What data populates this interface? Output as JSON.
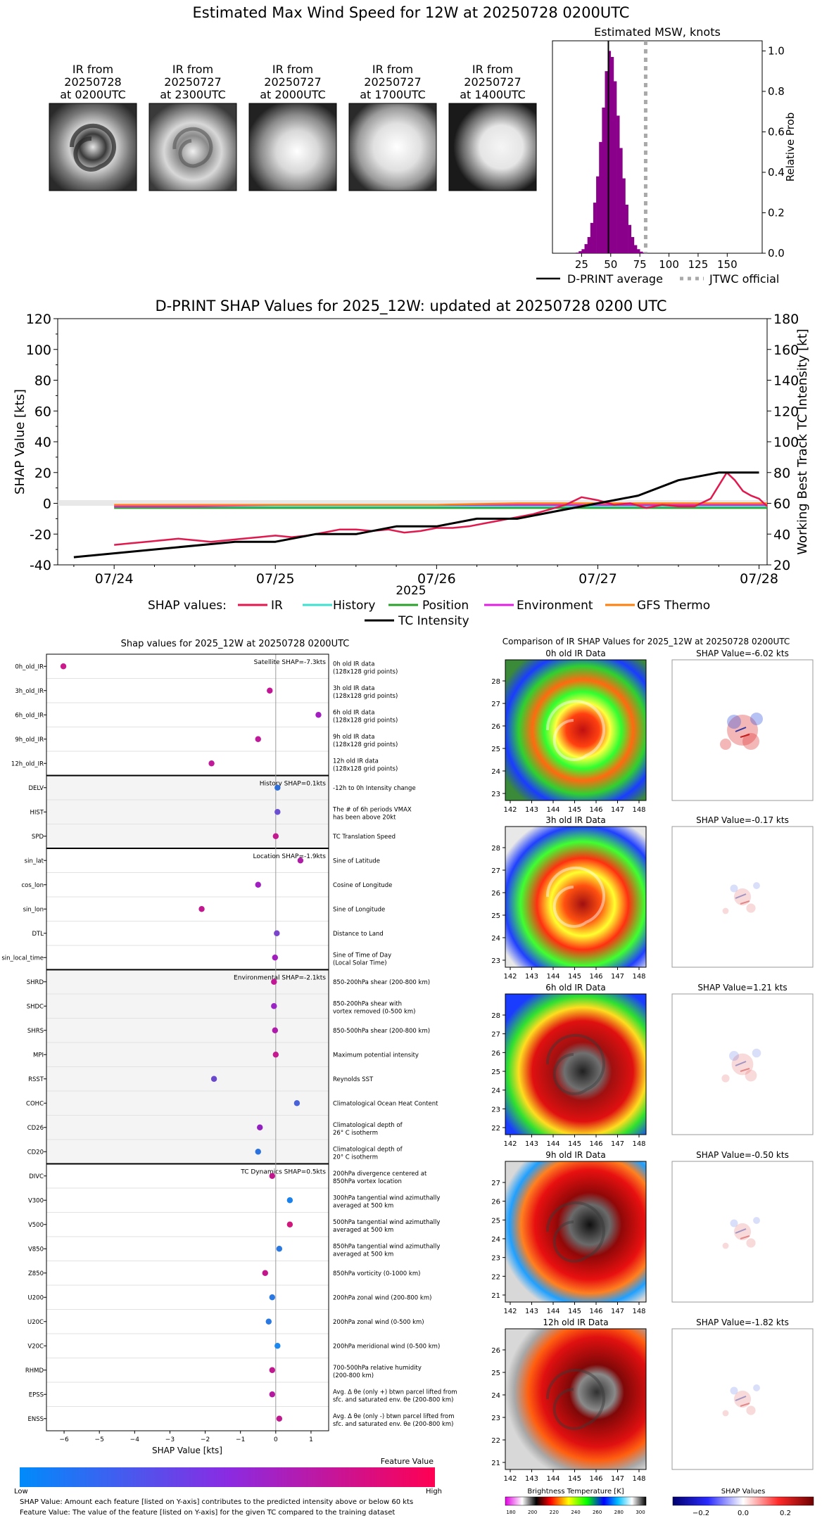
{
  "page_title": "Estimated Max Wind Speed for 12W at 20250728 0200UTC",
  "ir_thumbnails": [
    {
      "label1": "IR from",
      "label2": "20250728",
      "label3": "at 0200UTC"
    },
    {
      "label1": "IR from",
      "label2": "20250727",
      "label3": "at 2300UTC"
    },
    {
      "label1": "IR from",
      "label2": "20250727",
      "label3": "at 2000UTC"
    },
    {
      "label1": "IR from",
      "label2": "20250727",
      "label3": "at 1700UTC"
    },
    {
      "label1": "IR from",
      "label2": "20250727",
      "label3": "at 1400UTC"
    }
  ],
  "colors": {
    "histogram": "#8b008b",
    "ir": "#e0194f",
    "history": "#40e0d0",
    "position": "#2ca02c",
    "environment": "#e020e0",
    "gfs_thermo": "#ff7f0e",
    "tc_intensity": "#000000",
    "jtwc": "#a9a9a9",
    "group_shade": "#f4f4f4"
  },
  "chart_data": [
    {
      "id": "msw_histogram",
      "type": "bar",
      "title": "Estimated MSW, knots",
      "ylabel": "Relative Prob",
      "xlim": [
        0,
        180
      ],
      "ylim": [
        0,
        1.05
      ],
      "xticks": [
        "25",
        "50",
        "75",
        "100",
        "125",
        "150"
      ],
      "yticks": [
        "0.0",
        "0.2",
        "0.4",
        "0.6",
        "0.8",
        "1.0"
      ],
      "bin_width": 2.5,
      "bins_x": [
        20,
        22.5,
        25,
        27.5,
        30,
        32.5,
        35,
        37.5,
        40,
        42.5,
        45,
        47.5,
        50,
        52.5,
        55,
        57.5,
        60,
        62.5,
        65,
        67.5,
        70,
        72.5,
        75,
        77.5
      ],
      "bins_y": [
        0.003,
        0.01,
        0.02,
        0.045,
        0.08,
        0.15,
        0.25,
        0.38,
        0.55,
        0.72,
        0.9,
        1.0,
        0.97,
        0.85,
        0.68,
        0.52,
        0.37,
        0.24,
        0.14,
        0.08,
        0.04,
        0.02,
        0.008,
        0.003
      ],
      "dprint_average": 48,
      "jtwc_official": 80,
      "legend": [
        "D-PRINT average",
        "JTWC official"
      ]
    },
    {
      "id": "shap_timeseries",
      "type": "line",
      "title": "D-PRINT SHAP Values for 2025_12W: updated at 20250728 0200 UTC",
      "xlabel": "2025",
      "ylabel": "SHAP Value [kts]",
      "y2label": "Working Best Track TC Intensity [kt]",
      "xticks": [
        "07/24",
        "07/25",
        "07/26",
        "07/27",
        "07/28"
      ],
      "ylim": [
        -40,
        120
      ],
      "y2lim": [
        20,
        180
      ],
      "yticks": [
        "-40",
        "-20",
        "0",
        "20",
        "40",
        "60",
        "80",
        "100",
        "120"
      ],
      "y2ticks": [
        "20",
        "40",
        "60",
        "80",
        "100",
        "120",
        "140",
        "160",
        "180"
      ],
      "x_range_days": [
        -0.35,
        4.05
      ],
      "legend_prefix": "SHAP values:",
      "series": [
        {
          "name": "IR",
          "x": [
            0,
            0.1,
            0.2,
            0.3,
            0.4,
            0.5,
            0.6,
            0.7,
            0.8,
            0.9,
            1.0,
            1.1,
            1.2,
            1.3,
            1.4,
            1.5,
            1.6,
            1.7,
            1.8,
            1.9,
            2.0,
            2.1,
            2.2,
            2.3,
            2.4,
            2.5,
            2.6,
            2.7,
            2.8,
            2.9,
            3.0,
            3.1,
            3.2,
            3.3,
            3.4,
            3.5,
            3.6,
            3.7,
            3.8,
            3.85,
            3.9,
            3.95,
            4.0,
            4.05
          ],
          "y": [
            -27,
            -26,
            -25,
            -24,
            -23,
            -24,
            -25,
            -24,
            -23,
            -22,
            -21,
            -22,
            -21,
            -19,
            -17,
            -17,
            -18,
            -17,
            -19,
            -18,
            -16,
            -16,
            -15,
            -13,
            -11,
            -9,
            -7,
            -4,
            -1,
            4,
            2,
            -1,
            0,
            -3,
            -1,
            -2,
            -2,
            3,
            20,
            15,
            8,
            5,
            3,
            -2
          ]
        },
        {
          "name": "History",
          "x": [
            0,
            0.5,
            1.0,
            1.5,
            2.0,
            2.5,
            3.0,
            3.5,
            4.05
          ],
          "y": [
            -2,
            -2,
            -2,
            -2,
            -2,
            -2,
            -2,
            -2,
            -2
          ]
        },
        {
          "name": "Position",
          "x": [
            0,
            0.5,
            1.0,
            1.5,
            2.0,
            2.5,
            3.0,
            3.5,
            4.05
          ],
          "y": [
            -3,
            -3,
            -3,
            -3,
            -3,
            -3,
            -3,
            -3,
            -3
          ]
        },
        {
          "name": "Environment",
          "x": [
            0,
            0.5,
            1.0,
            1.5,
            2.0,
            2.5,
            3.0,
            3.5,
            4.05
          ],
          "y": [
            -2,
            -2,
            -1,
            -1,
            -1,
            -1,
            -1,
            -1,
            -1
          ]
        },
        {
          "name": "GFS Thermo",
          "x": [
            0,
            0.5,
            1.0,
            1.5,
            2.0,
            2.5,
            3.0,
            3.5,
            4.05
          ],
          "y": [
            -1,
            -1,
            -1,
            -1,
            -1,
            0,
            0,
            0,
            0
          ]
        },
        {
          "name": "TC Intensity",
          "axis": "right",
          "x": [
            -0.25,
            0.25,
            0.75,
            1.0,
            1.25,
            1.5,
            1.75,
            2.0,
            2.25,
            2.5,
            2.75,
            3.0,
            3.25,
            3.5,
            3.75,
            4.0
          ],
          "y": [
            25,
            30,
            35,
            35,
            40,
            40,
            45,
            45,
            50,
            50,
            55,
            60,
            65,
            75,
            80,
            80
          ]
        }
      ]
    },
    {
      "id": "shap_features",
      "type": "scatter",
      "title": "Shap values for 2025_12W at 20250728 0200UTC",
      "xlabel": "SHAP Value [kts]",
      "xlim": [
        -6.5,
        1.5
      ],
      "xticks": [
        "−6",
        "−5",
        "−4",
        "−3",
        "−2",
        "−1",
        "0",
        "1"
      ],
      "groups": [
        {
          "label": "Satellite SHAP=-7.3kts",
          "shaded": false,
          "features": [
            {
              "name": "0h_old_IR",
              "value": -6.02,
              "color": "#cc1a8c",
              "desc1": "0h old IR data",
              "desc2": "(128x128 grid points)"
            },
            {
              "name": "3h_old_IR",
              "value": -0.17,
              "color": "#c21596",
              "desc1": "3h old IR data",
              "desc2": "(128x128 grid points)"
            },
            {
              "name": "6h_old_IR",
              "value": 1.21,
              "color": "#a21ec0",
              "desc1": "6h old IR data",
              "desc2": "(128x128 grid points)"
            },
            {
              "name": "9h_old_IR",
              "value": -0.5,
              "color": "#c01a9a",
              "desc1": "9h old IR data",
              "desc2": "(128x128 grid points)"
            },
            {
              "name": "12h_old_IR",
              "value": -1.82,
              "color": "#c01a9a",
              "desc1": "12h old IR data",
              "desc2": "(128x128 grid points)"
            }
          ]
        },
        {
          "label": "History SHAP=0.1kts",
          "shaded": true,
          "features": [
            {
              "name": "DELV",
              "value": 0.05,
              "color": "#2d6ed8",
              "desc1": "-12h to 0h Intensity change",
              "desc2": ""
            },
            {
              "name": "HIST",
              "value": 0.05,
              "color": "#6a4fd0",
              "desc1": "The # of 6h periods VMAX",
              "desc2": "has been above 20kt"
            },
            {
              "name": "SPD",
              "value": 0.0,
              "color": "#c41a90",
              "desc1": "TC Translation Speed",
              "desc2": ""
            }
          ]
        },
        {
          "label": "Location SHAP=-1.9kts",
          "shaded": false,
          "features": [
            {
              "name": "sin_lat",
              "value": 0.7,
              "color": "#b01ba8",
              "desc1": "Sine of Latitude",
              "desc2": ""
            },
            {
              "name": "cos_lon",
              "value": -0.5,
              "color": "#a01ec2",
              "desc1": "Cosine of Longitude",
              "desc2": ""
            },
            {
              "name": "sin_lon",
              "value": -2.1,
              "color": "#c2188f",
              "desc1": "Sine of Longitude",
              "desc2": ""
            },
            {
              "name": "DTL",
              "value": 0.03,
              "color": "#7a45cc",
              "desc1": "Distance to Land",
              "desc2": ""
            },
            {
              "name": "sin_local_time",
              "value": -0.02,
              "color": "#a21cbe",
              "desc1": "Sine of Time of Day",
              "desc2": "(Local Solar Time)"
            }
          ]
        },
        {
          "label": "Environmental SHAP=-2.1kts",
          "shaded": true,
          "features": [
            {
              "name": "SHRD",
              "value": -0.05,
              "color": "#c21696",
              "desc1": "850-200hPa shear (200-800 km)",
              "desc2": ""
            },
            {
              "name": "SHDC",
              "value": -0.05,
              "color": "#9a24c4",
              "desc1": "850-200hPa shear with",
              "desc2": "vortex removed (0-500 km)"
            },
            {
              "name": "SHRS",
              "value": -0.02,
              "color": "#b01aac",
              "desc1": "850-500hPa shear (200-800 km)",
              "desc2": ""
            },
            {
              "name": "MPI",
              "value": 0.0,
              "color": "#c61890",
              "desc1": "Maximum potential intensity",
              "desc2": ""
            },
            {
              "name": "RSST",
              "value": -1.75,
              "color": "#6a48cc",
              "desc1": "Reynolds SST",
              "desc2": ""
            },
            {
              "name": "COHC",
              "value": 0.6,
              "color": "#4a62d8",
              "desc1": "Climatological Ocean Heat Content",
              "desc2": ""
            },
            {
              "name": "CD26",
              "value": -0.45,
              "color": "#9220c0",
              "desc1": "Climatological depth of",
              "desc2": "26° C isotherm"
            },
            {
              "name": "CD20",
              "value": -0.5,
              "color": "#2a72e0",
              "desc1": "Climatological depth of",
              "desc2": "20° C isotherm"
            }
          ]
        },
        {
          "label": "TC Dynamics SHAP=0.5kts",
          "shaded": false,
          "features": [
            {
              "name": "DIVC",
              "value": -0.1,
              "color": "#c2168f",
              "desc1": "200hPa divergence centered at",
              "desc2": "850hPa vortex location"
            },
            {
              "name": "V300",
              "value": 0.4,
              "color": "#1a82ea",
              "desc1": "300hPa tangential wind azimuthally",
              "desc2": "averaged at 500 km"
            },
            {
              "name": "V500",
              "value": 0.4,
              "color": "#d0187c",
              "desc1": "500hPa tangential wind azimuthally",
              "desc2": "averaged at 500 km"
            },
            {
              "name": "V850",
              "value": 0.1,
              "color": "#2a78e2",
              "desc1": "850hPa tangential wind azimuthally",
              "desc2": "averaged at 500 km"
            },
            {
              "name": "Z850",
              "value": -0.3,
              "color": "#c4168c",
              "desc1": "850hPa vorticity (0-1000 km)",
              "desc2": ""
            },
            {
              "name": "U200",
              "value": -0.1,
              "color": "#2a78e2",
              "desc1": "200hPa zonal wind (200-800 km)",
              "desc2": ""
            },
            {
              "name": "U20C",
              "value": -0.2,
              "color": "#2a78e2",
              "desc1": "200hPa zonal wind (0-500 km)",
              "desc2": ""
            },
            {
              "name": "V20C",
              "value": 0.05,
              "color": "#1a88ee",
              "desc1": "200hPa meridional wind (0-500 km)",
              "desc2": ""
            },
            {
              "name": "RHMD",
              "value": -0.1,
              "color": "#c0188f",
              "desc1": "700-500hPa relative humidity",
              "desc2": "(200-800 km)"
            },
            {
              "name": "EPSS",
              "value": -0.1,
              "color": "#b41aa0",
              "desc1": "Avg. Δ θe (only +) btwn parcel lifted from",
              "desc2": "sfc. and saturated env. θe (200-800 km)"
            },
            {
              "name": "ENSS",
              "value": 0.1,
              "color": "#c0188f",
              "desc1": "Avg. Δ θe (only -) btwn parcel lifted from",
              "desc2": "sfc. and saturated env. θe (200-800 km)"
            }
          ]
        }
      ]
    }
  ],
  "feature_colorbar": {
    "title": "Feature Value",
    "low": "Low",
    "high": "High"
  },
  "footnotes": [
    "SHAP Value: Amount each feature [listed on Y-axis] contributes to the predicted intensity above or below 60 kts",
    "Feature Value: The value of the feature [listed on Y-axis] for the given TC compared to the training dataset"
  ],
  "ir_comparison": {
    "title": "Comparison of IR SHAP Values for 2025_12W at 20250728 0200UTC",
    "panels": [
      {
        "ir_title": "0h old IR Data",
        "shap_title": "SHAP Value=-6.02 kts",
        "yticks": [
          "28",
          "27",
          "26",
          "25",
          "24",
          "23"
        ],
        "xticks": [
          "142",
          "143",
          "144",
          "145",
          "146",
          "147",
          "148"
        ]
      },
      {
        "ir_title": "3h old IR Data",
        "shap_title": "SHAP Value=-0.17 kts",
        "yticks": [
          "28",
          "27",
          "26",
          "25",
          "24",
          "23"
        ],
        "xticks": [
          "142",
          "143",
          "144",
          "145",
          "146",
          "147",
          "148"
        ]
      },
      {
        "ir_title": "6h old IR Data",
        "shap_title": "SHAP Value=1.21 kts",
        "yticks": [
          "28",
          "27",
          "26",
          "25",
          "24",
          "23",
          "22"
        ],
        "xticks": [
          "142",
          "143",
          "144",
          "145",
          "146",
          "147",
          "148"
        ]
      },
      {
        "ir_title": "9h old IR Data",
        "shap_title": "SHAP Value=-0.50 kts",
        "yticks": [
          "27",
          "26",
          "25",
          "24",
          "23",
          "22",
          "21"
        ],
        "xticks": [
          "142",
          "143",
          "144",
          "145",
          "146",
          "147",
          "148"
        ]
      },
      {
        "ir_title": "12h old IR Data",
        "shap_title": "SHAP Value=-1.82 kts",
        "yticks": [
          "26",
          "25",
          "24",
          "23",
          "22",
          "21"
        ],
        "xticks": [
          "142",
          "143",
          "144",
          "145",
          "146",
          "147",
          "148"
        ]
      }
    ],
    "bt_colorbar": {
      "label": "Brightness Temperature [K]",
      "ticks": [
        "180",
        "200",
        "220",
        "240",
        "260",
        "280",
        "300"
      ]
    },
    "shap_colorbar": {
      "label": "SHAP Values",
      "ticks": [
        "−0.2",
        "0.0",
        "0.2"
      ]
    }
  }
}
